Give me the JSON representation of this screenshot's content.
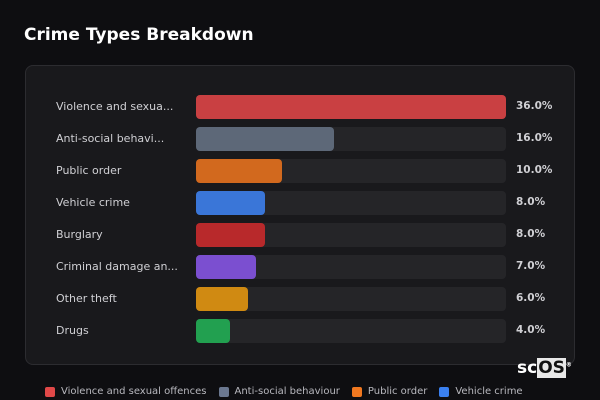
{
  "title": "Crime Types Breakdown",
  "chart_data": {
    "type": "bar",
    "orientation": "horizontal",
    "title": "Crime Types Breakdown",
    "categories": [
      "Violence and sexua...",
      "Anti-social behavi...",
      "Public order",
      "Vehicle crime",
      "Burglary",
      "Criminal damage an...",
      "Other theft",
      "Drugs"
    ],
    "values": [
      36.0,
      16.0,
      10.0,
      8.0,
      8.0,
      7.0,
      6.0,
      4.0
    ],
    "value_labels": [
      "36.0%",
      "16.0%",
      "10.0%",
      "8.0%",
      "8.0%",
      "7.0%",
      "6.0%",
      "4.0%"
    ],
    "colors": [
      "#c94042",
      "#5d6878",
      "#d2691e",
      "#3a76d8",
      "#b8292b",
      "#7b4fd0",
      "#d08a12",
      "#22a050"
    ],
    "xlim": [
      0,
      36
    ],
    "legend": {
      "placement": "bottom",
      "items": [
        {
          "label": "Violence and sexual offences",
          "color": "#e04848"
        },
        {
          "label": "Anti-social behaviour",
          "color": "#6b7890"
        },
        {
          "label": "Public order",
          "color": "#f07820"
        },
        {
          "label": "Vehicle crime",
          "color": "#3a80f0"
        }
      ]
    }
  },
  "logo": {
    "prefix": "sc",
    "boxed": "OS",
    "mark": "®"
  }
}
